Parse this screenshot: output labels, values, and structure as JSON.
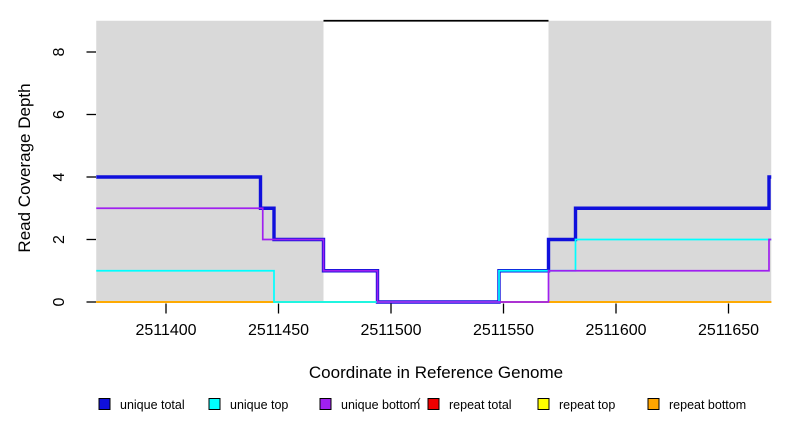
{
  "chart_data": {
    "type": "line",
    "step_interpolation": "hv",
    "title": "",
    "xlabel": "Coordinate in Reference Genome",
    "ylabel": "Read Coverage Depth",
    "xlim": [
      2511369,
      2511669
    ],
    "ylim": [
      0,
      9
    ],
    "grid": false,
    "x_ticks": [
      {
        "value": 2511400,
        "label": "2511400"
      },
      {
        "value": 2511450,
        "label": "2511450"
      },
      {
        "value": 2511500,
        "label": "2511500"
      },
      {
        "value": 2511550,
        "label": "2511550"
      },
      {
        "value": 2511600,
        "label": "2511600"
      },
      {
        "value": 2511650,
        "label": "2511650"
      }
    ],
    "y_ticks": [
      {
        "value": 0,
        "label": "0"
      },
      {
        "value": 2,
        "label": "2"
      },
      {
        "value": 4,
        "label": "4"
      },
      {
        "value": 6,
        "label": "6"
      },
      {
        "value": 8,
        "label": "8"
      }
    ],
    "shaded_regions": [
      {
        "x_start": 2511369,
        "x_end": 2511470,
        "color": "#d9d9d9"
      },
      {
        "x_start": 2511570,
        "x_end": 2511669,
        "color": "#d9d9d9"
      }
    ],
    "top_line": {
      "x_start": 2511470,
      "x_end": 2511570,
      "y": 9,
      "color": "#000000"
    },
    "series": [
      {
        "name": "repeat total",
        "color": "#ee0000",
        "line_width": 1.7,
        "steps": [
          [
            2511369,
            0
          ],
          [
            2511669,
            0
          ]
        ]
      },
      {
        "name": "repeat top",
        "color": "#ffff00",
        "line_width": 1.7,
        "steps": [
          [
            2511369,
            0
          ],
          [
            2511669,
            0
          ]
        ]
      },
      {
        "name": "repeat bottom",
        "color": "#ffa500",
        "line_width": 1.8,
        "steps": [
          [
            2511369,
            0
          ],
          [
            2511669,
            0
          ]
        ]
      },
      {
        "name": "unique total",
        "color": "#1010dc",
        "line_width": 3.4,
        "steps": [
          [
            2511369,
            4
          ],
          [
            2511442,
            3
          ],
          [
            2511448,
            2
          ],
          [
            2511470,
            1
          ],
          [
            2511494,
            0
          ],
          [
            2511548,
            1
          ],
          [
            2511570,
            2
          ],
          [
            2511582,
            3
          ],
          [
            2511668,
            4
          ],
          [
            2511669,
            4
          ]
        ]
      },
      {
        "name": "unique top",
        "color": "#00ffff",
        "line_width": 1.7,
        "steps": [
          [
            2511369,
            1
          ],
          [
            2511448,
            0
          ],
          [
            2511548,
            1
          ],
          [
            2511582,
            2
          ],
          [
            2511669,
            2
          ]
        ]
      },
      {
        "name": "unique bottom",
        "color": "#a020f0",
        "line_width": 1.7,
        "steps": [
          [
            2511369,
            3
          ],
          [
            2511443,
            2
          ],
          [
            2511470,
            1
          ],
          [
            2511494,
            0
          ],
          [
            2511570,
            1
          ],
          [
            2511668,
            2
          ],
          [
            2511669,
            2
          ]
        ]
      }
    ],
    "legend": {
      "position": "bottom",
      "items": [
        {
          "label": "unique total",
          "color": "#1010dc"
        },
        {
          "label": "unique top",
          "color": "#00ffff"
        },
        {
          "label": "unique bottom",
          "color": "#a020f0"
        },
        {
          "label": "repeat total",
          "color": "#ee0000"
        },
        {
          "label": "repeat top",
          "color": "#ffff00"
        },
        {
          "label": "repeat bottom",
          "color": "#ffa500"
        }
      ]
    }
  }
}
